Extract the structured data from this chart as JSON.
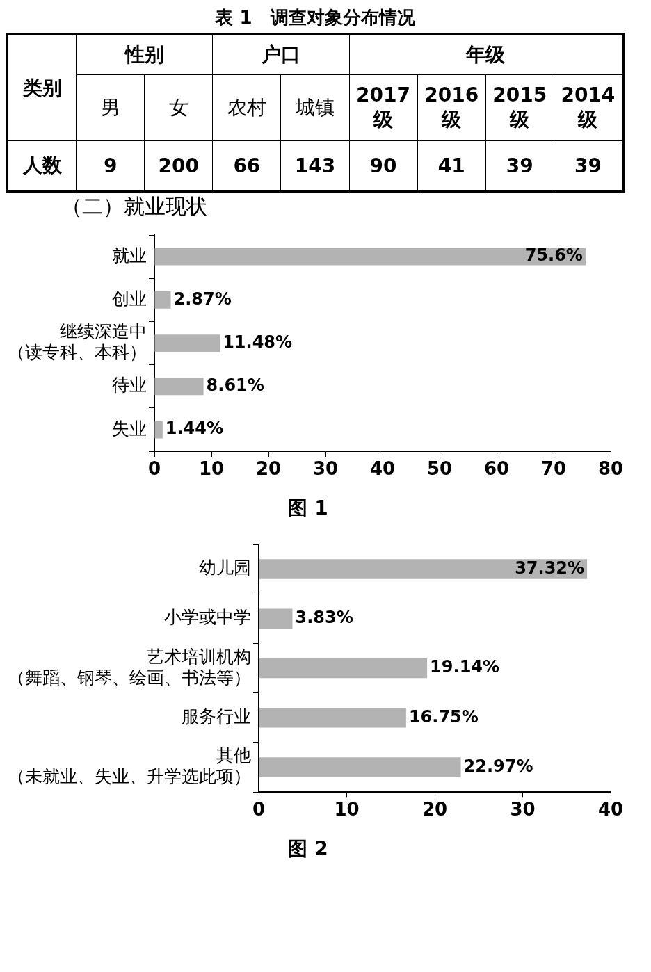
{
  "chart_data": [
    {
      "type": "heatmap",
      "title": "表 1　调查对象分布情况",
      "annotations": [
        "类别",
        "性别",
        "户口",
        "年级"
      ],
      "categories": [
        "男",
        "女",
        "农村",
        "城镇",
        "2017级",
        "2016级",
        "2015级",
        "2014级"
      ],
      "y_categories": [
        "人数"
      ],
      "cells": [
        [
          9,
          200,
          66,
          143,
          90,
          41,
          39,
          39
        ]
      ],
      "data_labels": true
    },
    {
      "type": "bar",
      "orientation": "horizontal",
      "title": "图 1",
      "annotations": [
        "（二）就业现状"
      ],
      "categories": [
        "就业",
        "创业",
        "继续深造中（读专科、本科）",
        "待业",
        "失业"
      ],
      "values": [
        75.6,
        2.87,
        11.48,
        8.61,
        1.44
      ],
      "value_labels": [
        "75.6%",
        "2.87%",
        "11.48%",
        "8.61%",
        "1.44%"
      ],
      "color": "#b3b3b3",
      "xlim": [
        0,
        80
      ],
      "xticks": [
        0,
        10,
        20,
        30,
        40,
        50,
        60,
        70,
        80
      ]
    },
    {
      "type": "bar",
      "orientation": "horizontal",
      "title": "图 2",
      "categories": [
        "幼儿园",
        "小学或中学",
        "艺术培训机构（舞蹈、钢琴、绘画、书法等）",
        "服务行业",
        "其他（未就业、失业、升学选此项）"
      ],
      "values": [
        37.32,
        3.83,
        19.14,
        16.75,
        22.97
      ],
      "value_labels": [
        "37.32%",
        "3.83%",
        "19.14%",
        "16.75%",
        "22.97%"
      ],
      "color": "#b3b3b3",
      "xlim": [
        0,
        40
      ],
      "xticks": [
        0,
        10,
        20,
        30,
        40
      ]
    }
  ]
}
